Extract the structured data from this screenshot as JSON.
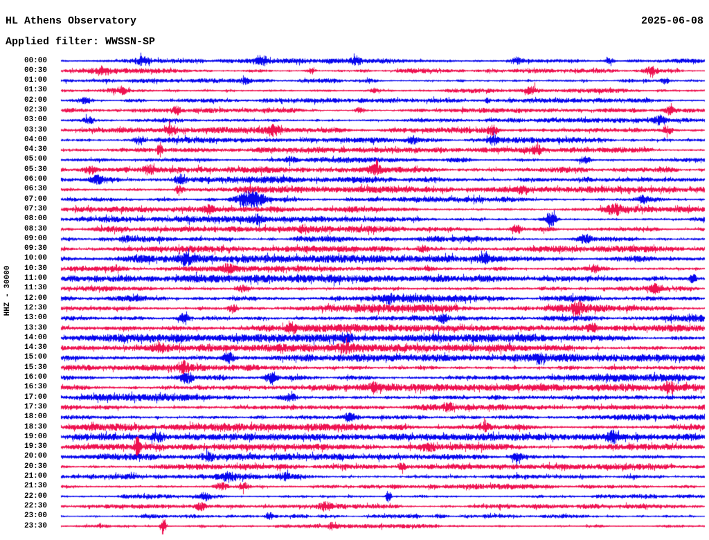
{
  "header": {
    "title": "HL Athens Observatory",
    "filter_label": "Applied filter: WWSSN-SP",
    "date": "2025-06-08"
  },
  "y_axis_label": "HHZ - 30000",
  "colors": {
    "blue_trace": "#0606ee",
    "red_trace": "#ee1150",
    "background": "#ffffff",
    "text": "#000000"
  },
  "chart_data": {
    "type": "line",
    "subtype": "helicorder-seismogram",
    "title": "HL Athens Observatory",
    "date": "2025-06-08",
    "channel_scale_label": "HHZ - 30000",
    "filter": "WWSSN-SP",
    "row_duration_minutes": 30,
    "x_range_minutes": [
      0,
      30
    ],
    "legend_position": "none",
    "grid": false,
    "rows": [
      {
        "time": "00:00",
        "color": "blue",
        "base": 1.5,
        "events": [
          [
            0.126,
            4,
            16
          ],
          [
            0.312,
            4.5,
            14
          ],
          [
            0.459,
            3,
            12
          ],
          [
            0.707,
            3.5,
            12
          ],
          [
            0.852,
            3.5,
            10
          ]
        ]
      },
      {
        "time": "00:30",
        "color": "red",
        "base": 1.5,
        "events": [
          [
            0.067,
            3.5,
            14
          ],
          [
            0.387,
            2.5,
            10
          ],
          [
            0.916,
            3.5,
            16
          ]
        ]
      },
      {
        "time": "01:00",
        "color": "blue",
        "base": 1.3,
        "events": [
          [
            0.287,
            2.5,
            10
          ],
          [
            0.938,
            3,
            10
          ]
        ]
      },
      {
        "time": "01:30",
        "color": "red",
        "base": 1.4,
        "events": [
          [
            0.094,
            3,
            12
          ],
          [
            0.486,
            2.5,
            10
          ],
          [
            0.731,
            3.5,
            12
          ]
        ]
      },
      {
        "time": "02:00",
        "color": "blue",
        "base": 1.4,
        "events": [
          [
            0.038,
            3,
            14
          ],
          [
            0.663,
            2.5,
            10
          ]
        ]
      },
      {
        "time": "02:30",
        "color": "red",
        "base": 1.4,
        "events": [
          [
            0.18,
            4,
            12
          ],
          [
            0.465,
            3,
            10
          ],
          [
            0.946,
            3,
            10
          ]
        ]
      },
      {
        "time": "03:00",
        "color": "blue",
        "base": 1.5,
        "events": [
          [
            0.043,
            3,
            12
          ],
          [
            0.93,
            4,
            12
          ]
        ]
      },
      {
        "time": "03:30",
        "color": "red",
        "base": 1.8,
        "events": [
          [
            0.171,
            5,
            10
          ],
          [
            0.33,
            4.5,
            14
          ],
          [
            0.669,
            5,
            12
          ],
          [
            0.943,
            3.5,
            10
          ]
        ]
      },
      {
        "time": "04:00",
        "color": "blue",
        "base": 1.7,
        "events": [
          [
            0.12,
            3.5,
            12
          ],
          [
            0.545,
            3.5,
            12
          ],
          [
            0.671,
            4,
            12
          ]
        ]
      },
      {
        "time": "04:30",
        "color": "red",
        "base": 1.6,
        "events": [
          [
            0.153,
            6,
            5
          ],
          [
            0.739,
            3.5,
            12
          ]
        ]
      },
      {
        "time": "05:00",
        "color": "blue",
        "base": 1.7,
        "events": [
          [
            0.357,
            3,
            12
          ],
          [
            0.814,
            3,
            12
          ]
        ]
      },
      {
        "time": "05:30",
        "color": "red",
        "base": 2.0,
        "events": [
          [
            0.045,
            4,
            16
          ],
          [
            0.137,
            4,
            14
          ],
          [
            0.486,
            4,
            12
          ]
        ]
      },
      {
        "time": "06:00",
        "color": "blue",
        "base": 2.0,
        "events": [
          [
            0.056,
            4.5,
            16
          ],
          [
            0.185,
            3.5,
            12
          ]
        ]
      },
      {
        "time": "06:30",
        "color": "red",
        "base": 1.9,
        "events": [
          [
            0.183,
            5,
            8
          ],
          [
            0.717,
            3.5,
            12
          ]
        ]
      },
      {
        "time": "07:00",
        "color": "blue",
        "base": 1.8,
        "events": [
          [
            0.295,
            9,
            34
          ],
          [
            0.905,
            3.5,
            12
          ]
        ]
      },
      {
        "time": "07:30",
        "color": "red",
        "base": 1.8,
        "events": [
          [
            0.228,
            3,
            12
          ],
          [
            0.86,
            4.5,
            16
          ]
        ]
      },
      {
        "time": "08:00",
        "color": "blue",
        "base": 1.9,
        "events": [
          [
            0.305,
            4,
            12
          ],
          [
            0.76,
            8,
            14
          ]
        ]
      },
      {
        "time": "08:30",
        "color": "red",
        "base": 1.9,
        "events": [
          [
            0.378,
            3,
            12
          ],
          [
            0.707,
            3.5,
            12
          ]
        ]
      },
      {
        "time": "09:00",
        "color": "blue",
        "base": 1.9,
        "events": [
          [
            0.099,
            3,
            12
          ],
          [
            0.814,
            4,
            12
          ]
        ]
      },
      {
        "time": "09:30",
        "color": "red",
        "base": 1.9,
        "events": [
          [
            0.561,
            3.5,
            12
          ]
        ]
      },
      {
        "time": "10:00",
        "color": "blue",
        "base": 2.2,
        "events": [
          [
            0.196,
            4.5,
            14
          ],
          [
            0.658,
            3.5,
            12
          ]
        ]
      },
      {
        "time": "10:30",
        "color": "red",
        "base": 2.2,
        "events": [
          [
            0.26,
            3.5,
            12
          ],
          [
            0.83,
            3.5,
            12
          ]
        ]
      },
      {
        "time": "11:00",
        "color": "blue",
        "base": 2.3,
        "events": [
          [
            0.422,
            3.5,
            12
          ],
          [
            0.981,
            4,
            10
          ]
        ]
      },
      {
        "time": "11:30",
        "color": "red",
        "base": 2.3,
        "events": [
          [
            0.282,
            3.5,
            12
          ],
          [
            0.922,
            4.5,
            14
          ]
        ]
      },
      {
        "time": "12:00",
        "color": "blue",
        "base": 2.3,
        "events": [
          [
            0.508,
            3.5,
            12
          ]
        ]
      },
      {
        "time": "12:30",
        "color": "red",
        "base": 2.4,
        "events": [
          [
            0.267,
            5,
            10
          ],
          [
            0.803,
            4,
            12
          ]
        ]
      },
      {
        "time": "13:00",
        "color": "blue",
        "base": 2.4,
        "events": [
          [
            0.19,
            4.5,
            12
          ],
          [
            0.594,
            3.5,
            12
          ]
        ]
      },
      {
        "time": "13:30",
        "color": "red",
        "base": 2.3,
        "events": [
          [
            0.357,
            3.5,
            12
          ],
          [
            0.825,
            4,
            12
          ]
        ]
      },
      {
        "time": "14:00",
        "color": "blue",
        "base": 2.3,
        "events": [
          [
            0.443,
            3.5,
            12
          ]
        ]
      },
      {
        "time": "14:30",
        "color": "red",
        "base": 2.3,
        "events": [
          [
            0.153,
            3.5,
            12
          ],
          [
            0.443,
            4,
            12
          ]
        ]
      },
      {
        "time": "15:00",
        "color": "blue",
        "base": 2.3,
        "events": [
          [
            0.26,
            5,
            12
          ],
          [
            0.744,
            3.5,
            12
          ]
        ]
      },
      {
        "time": "15:30",
        "color": "red",
        "base": 2.2,
        "events": [
          [
            0.19,
            4,
            10
          ]
        ]
      },
      {
        "time": "16:00",
        "color": "blue",
        "base": 2.3,
        "events": [
          [
            0.196,
            5,
            14
          ],
          [
            0.325,
            4,
            12
          ]
        ]
      },
      {
        "time": "16:30",
        "color": "red",
        "base": 2.2,
        "events": [
          [
            0.486,
            3.5,
            12
          ],
          [
            0.943,
            5,
            12
          ]
        ]
      },
      {
        "time": "17:00",
        "color": "blue",
        "base": 2.1,
        "events": [
          [
            0.357,
            3.5,
            12
          ]
        ]
      },
      {
        "time": "17:30",
        "color": "red",
        "base": 2.1,
        "events": [
          [
            0.604,
            3.5,
            12
          ]
        ]
      },
      {
        "time": "18:00",
        "color": "blue",
        "base": 2.1,
        "events": [
          [
            0.448,
            4,
            12
          ]
        ]
      },
      {
        "time": "18:30",
        "color": "red",
        "base": 2.1,
        "events": [
          [
            0.658,
            3.5,
            12
          ]
        ]
      },
      {
        "time": "19:00",
        "color": "blue",
        "base": 2.0,
        "events": [
          [
            0.153,
            3.5,
            12
          ],
          [
            0.857,
            4,
            12
          ]
        ]
      },
      {
        "time": "19:30",
        "color": "red",
        "base": 1.9,
        "events": [
          [
            0.118,
            14,
            5
          ],
          [
            0.572,
            3,
            12
          ]
        ]
      },
      {
        "time": "20:00",
        "color": "blue",
        "base": 1.9,
        "events": [
          [
            0.228,
            3.5,
            12
          ],
          [
            0.707,
            3.5,
            12
          ]
        ]
      },
      {
        "time": "20:30",
        "color": "red",
        "base": 1.8,
        "events": [
          [
            0.529,
            3.5,
            12
          ]
        ]
      },
      {
        "time": "21:00",
        "color": "blue",
        "base": 1.7,
        "events": [
          [
            0.26,
            3.5,
            12
          ],
          [
            0.346,
            3.5,
            12
          ]
        ]
      },
      {
        "time": "21:30",
        "color": "red",
        "base": 1.8,
        "events": [
          [
            0.249,
            4,
            12
          ],
          [
            0.282,
            4,
            12
          ]
        ]
      },
      {
        "time": "22:00",
        "color": "blue",
        "base": 1.3,
        "events": [
          [
            0.223,
            3.5,
            10
          ],
          [
            0.508,
            6,
            5
          ]
        ]
      },
      {
        "time": "22:30",
        "color": "red",
        "base": 1.4,
        "events": [
          [
            0.217,
            4,
            12
          ],
          [
            0.411,
            4,
            12
          ]
        ]
      },
      {
        "time": "23:00",
        "color": "blue",
        "base": 1.1,
        "events": [
          [
            0.325,
            3,
            10
          ]
        ]
      },
      {
        "time": "23:30",
        "color": "red",
        "base": 1.2,
        "events": [
          [
            0.159,
            10,
            6
          ],
          [
            0.422,
            3,
            10
          ]
        ]
      }
    ]
  }
}
